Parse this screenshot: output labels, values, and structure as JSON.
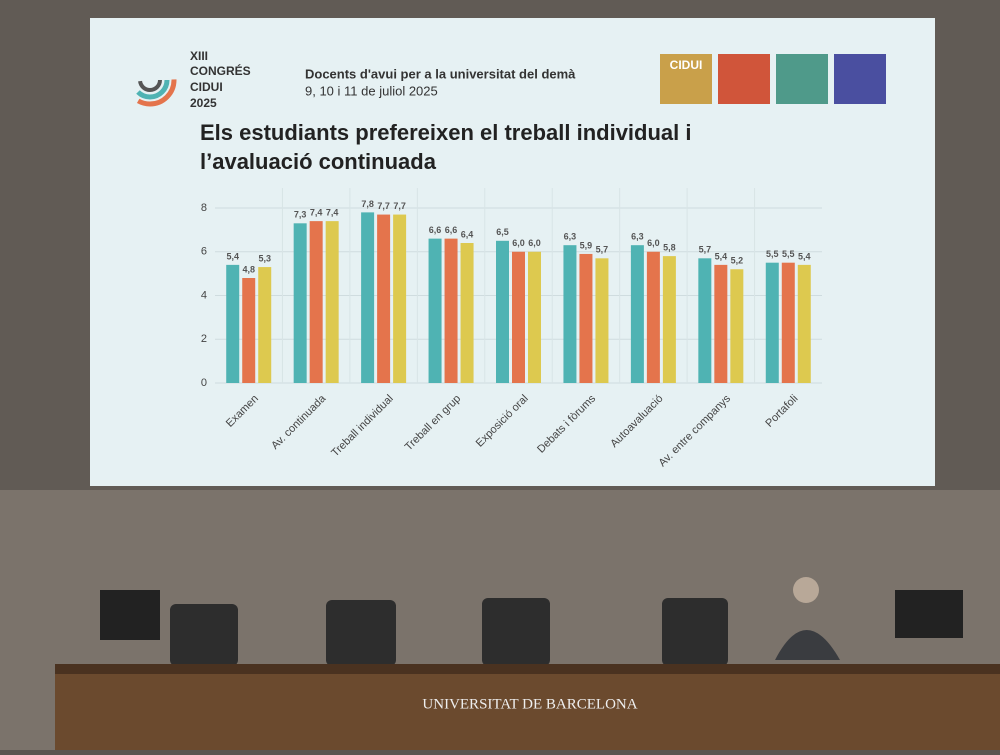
{
  "slide": {
    "congress": [
      "XIII",
      "CONGRÉS",
      "CIDUI",
      "2025"
    ],
    "motto": "Docents d'avui per a la universitat del demà",
    "dates": "9, 10 i 11 de juliol 2025",
    "logo": "CIDUI"
  },
  "venue": "UNIVERSITAT DE BARCELONA",
  "chart_data": {
    "type": "bar",
    "title": "Els estudiants prefereixen el treball individual i l’avaluació continuada",
    "categories": [
      "Examen",
      "Av. continuada",
      "Treball individual",
      "Treball en grup",
      "Exposició oral",
      "Debats i fòrums",
      "Autoavaluació",
      "Av. entre companys",
      "Portafoli"
    ],
    "series": [
      {
        "color": "#4fb3b3",
        "values": [
          5.4,
          7.3,
          7.8,
          6.6,
          6.5,
          6.3,
          6.3,
          5.7,
          5.5
        ],
        "value_labels": [
          "5,4",
          "7,3",
          "7,8",
          "6,6",
          "6,5",
          "6,3",
          "6,3",
          "5,7",
          "5,5"
        ]
      },
      {
        "color": "#e4744c",
        "values": [
          4.8,
          7.4,
          7.7,
          6.6,
          6.0,
          5.9,
          6.0,
          5.4,
          5.5
        ],
        "value_labels": [
          "4,8",
          "7,4",
          "7,7",
          "6,6",
          "6,0",
          "5,9",
          "6,0",
          "5,4",
          "5,5"
        ]
      },
      {
        "color": "#ddc94f",
        "values": [
          5.3,
          7.4,
          7.7,
          6.4,
          6.0,
          5.7,
          5.8,
          5.2,
          5.4
        ],
        "value_labels": [
          "5,3",
          "7,4",
          "7,7",
          "6,4",
          "6,0",
          "5,7",
          "5,8",
          "5,2",
          "5,4"
        ]
      }
    ],
    "ylim": [
      0,
      8
    ],
    "yticks": [
      0,
      2,
      4,
      6,
      8
    ],
    "grid": true
  }
}
